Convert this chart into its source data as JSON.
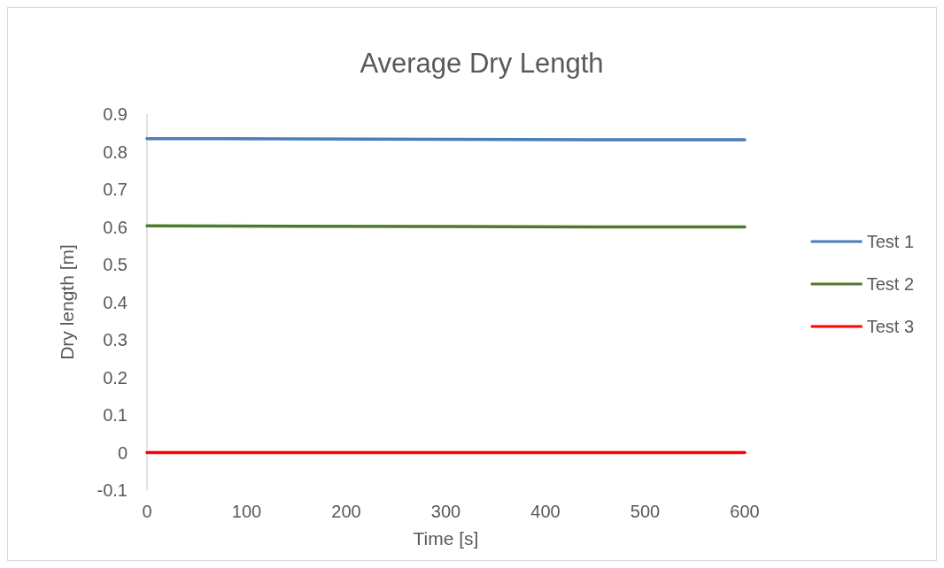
{
  "chart_data": {
    "type": "line",
    "title": "Average Dry Length",
    "xlabel": "Time [s]",
    "ylabel": "Dry length [m]",
    "x": [
      0,
      150,
      300,
      450,
      600
    ],
    "series": [
      {
        "name": "Test 1",
        "color": "#4a7ebb",
        "values": [
          0.835,
          0.834,
          0.833,
          0.832,
          0.832
        ]
      },
      {
        "name": "Test 2",
        "color": "#4e7a2e",
        "values": [
          0.603,
          0.602,
          0.601,
          0.6,
          0.6
        ]
      },
      {
        "name": "Test 3",
        "color": "#ff0000",
        "values": [
          0,
          0,
          0,
          0,
          0
        ]
      }
    ],
    "xlim": [
      0,
      600
    ],
    "xticks": [
      0,
      100,
      200,
      300,
      400,
      500,
      600
    ],
    "ylim": [
      -0.1,
      0.9
    ],
    "yticks": [
      -0.1,
      0,
      0.1,
      0.2,
      0.3,
      0.4,
      0.5,
      0.6,
      0.7,
      0.8,
      0.9
    ],
    "grid": false,
    "legend": "right",
    "marker": "none",
    "line_style": "solid"
  }
}
